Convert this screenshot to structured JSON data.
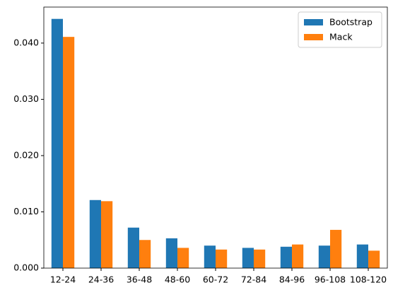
{
  "chart_data": {
    "type": "bar",
    "categories": [
      "12-24",
      "24-36",
      "36-48",
      "48-60",
      "60-72",
      "72-84",
      "84-96",
      "96-108",
      "108-120"
    ],
    "series": [
      {
        "name": "Bootstrap",
        "color": "#1f77b4",
        "values": [
          0.0443,
          0.0121,
          0.0072,
          0.0053,
          0.004,
          0.0036,
          0.0038,
          0.004,
          0.0042
        ]
      },
      {
        "name": "Mack",
        "color": "#ff7f0e",
        "values": [
          0.0411,
          0.0119,
          0.005,
          0.0036,
          0.0033,
          0.0033,
          0.0042,
          0.0068,
          0.0031
        ]
      }
    ],
    "ylim": [
      0,
      0.0464
    ],
    "yticks": [
      {
        "value": 0,
        "label": "0.000"
      },
      {
        "value": 0.01,
        "label": "0.010"
      },
      {
        "value": 0.02,
        "label": "0.020"
      },
      {
        "value": 0.03,
        "label": "0.030"
      },
      {
        "value": 0.04,
        "label": "0.040"
      }
    ],
    "legend": "upper right"
  }
}
